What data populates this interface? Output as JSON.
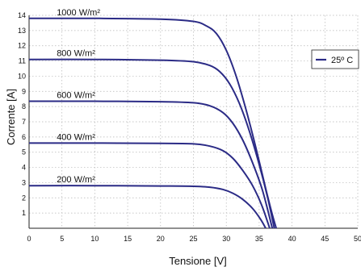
{
  "chart_data": {
    "type": "line",
    "xlabel": "Tensione [V]",
    "ylabel": "Corrente [A]",
    "xlim": [
      0,
      50
    ],
    "ylim": [
      0,
      14
    ],
    "xticks": [
      0,
      5,
      10,
      15,
      20,
      25,
      30,
      35,
      40,
      45,
      50
    ],
    "yticks": [
      1,
      2,
      3,
      4,
      5,
      6,
      7,
      8,
      9,
      10,
      11,
      12,
      13,
      14
    ],
    "grid": true,
    "legend": {
      "position": "top-right",
      "entries": [
        {
          "label": "25º C",
          "color": "#2b2b86"
        }
      ]
    },
    "line_color": "#2b2b86",
    "series": [
      {
        "label": "1000 W/m²",
        "x": [
          0,
          10,
          20,
          25,
          27,
          28.5,
          30,
          31.5,
          33,
          34.5,
          36,
          37,
          37.6
        ],
        "y": [
          13.8,
          13.8,
          13.75,
          13.6,
          13.3,
          12.8,
          11.7,
          10.0,
          7.8,
          5.3,
          2.6,
          0.9,
          0
        ]
      },
      {
        "label": "800 W/m²",
        "x": [
          0,
          10,
          20,
          25,
          27.5,
          29,
          30.5,
          32,
          33.5,
          35,
          36.3,
          37.3
        ],
        "y": [
          11.1,
          11.1,
          11.05,
          10.95,
          10.7,
          10.3,
          9.5,
          8.2,
          6.4,
          4.2,
          2.0,
          0
        ]
      },
      {
        "label": "600 W/m²",
        "x": [
          0,
          10,
          20,
          25,
          27.5,
          29.5,
          31,
          32.5,
          34,
          35.5,
          37
        ],
        "y": [
          8.35,
          8.35,
          8.32,
          8.25,
          8.05,
          7.6,
          6.9,
          5.8,
          4.3,
          2.5,
          0
        ]
      },
      {
        "label": "400 W/m²",
        "x": [
          0,
          10,
          20,
          25,
          27.5,
          29.5,
          31,
          32.5,
          34,
          35.4,
          36.6
        ],
        "y": [
          5.6,
          5.6,
          5.58,
          5.55,
          5.4,
          5.1,
          4.6,
          3.8,
          2.8,
          1.5,
          0
        ]
      },
      {
        "label": "200 W/m²",
        "x": [
          0,
          10,
          20,
          25,
          27.5,
          29.5,
          31,
          32.5,
          34,
          35.2,
          36
        ],
        "y": [
          2.8,
          2.8,
          2.78,
          2.76,
          2.7,
          2.55,
          2.3,
          1.9,
          1.3,
          0.6,
          0
        ]
      }
    ],
    "curve_labels": [
      "1000 W/m²",
      "800 W/m²",
      "600 W/m²",
      "400 W/m²",
      "200 W/m²"
    ]
  }
}
